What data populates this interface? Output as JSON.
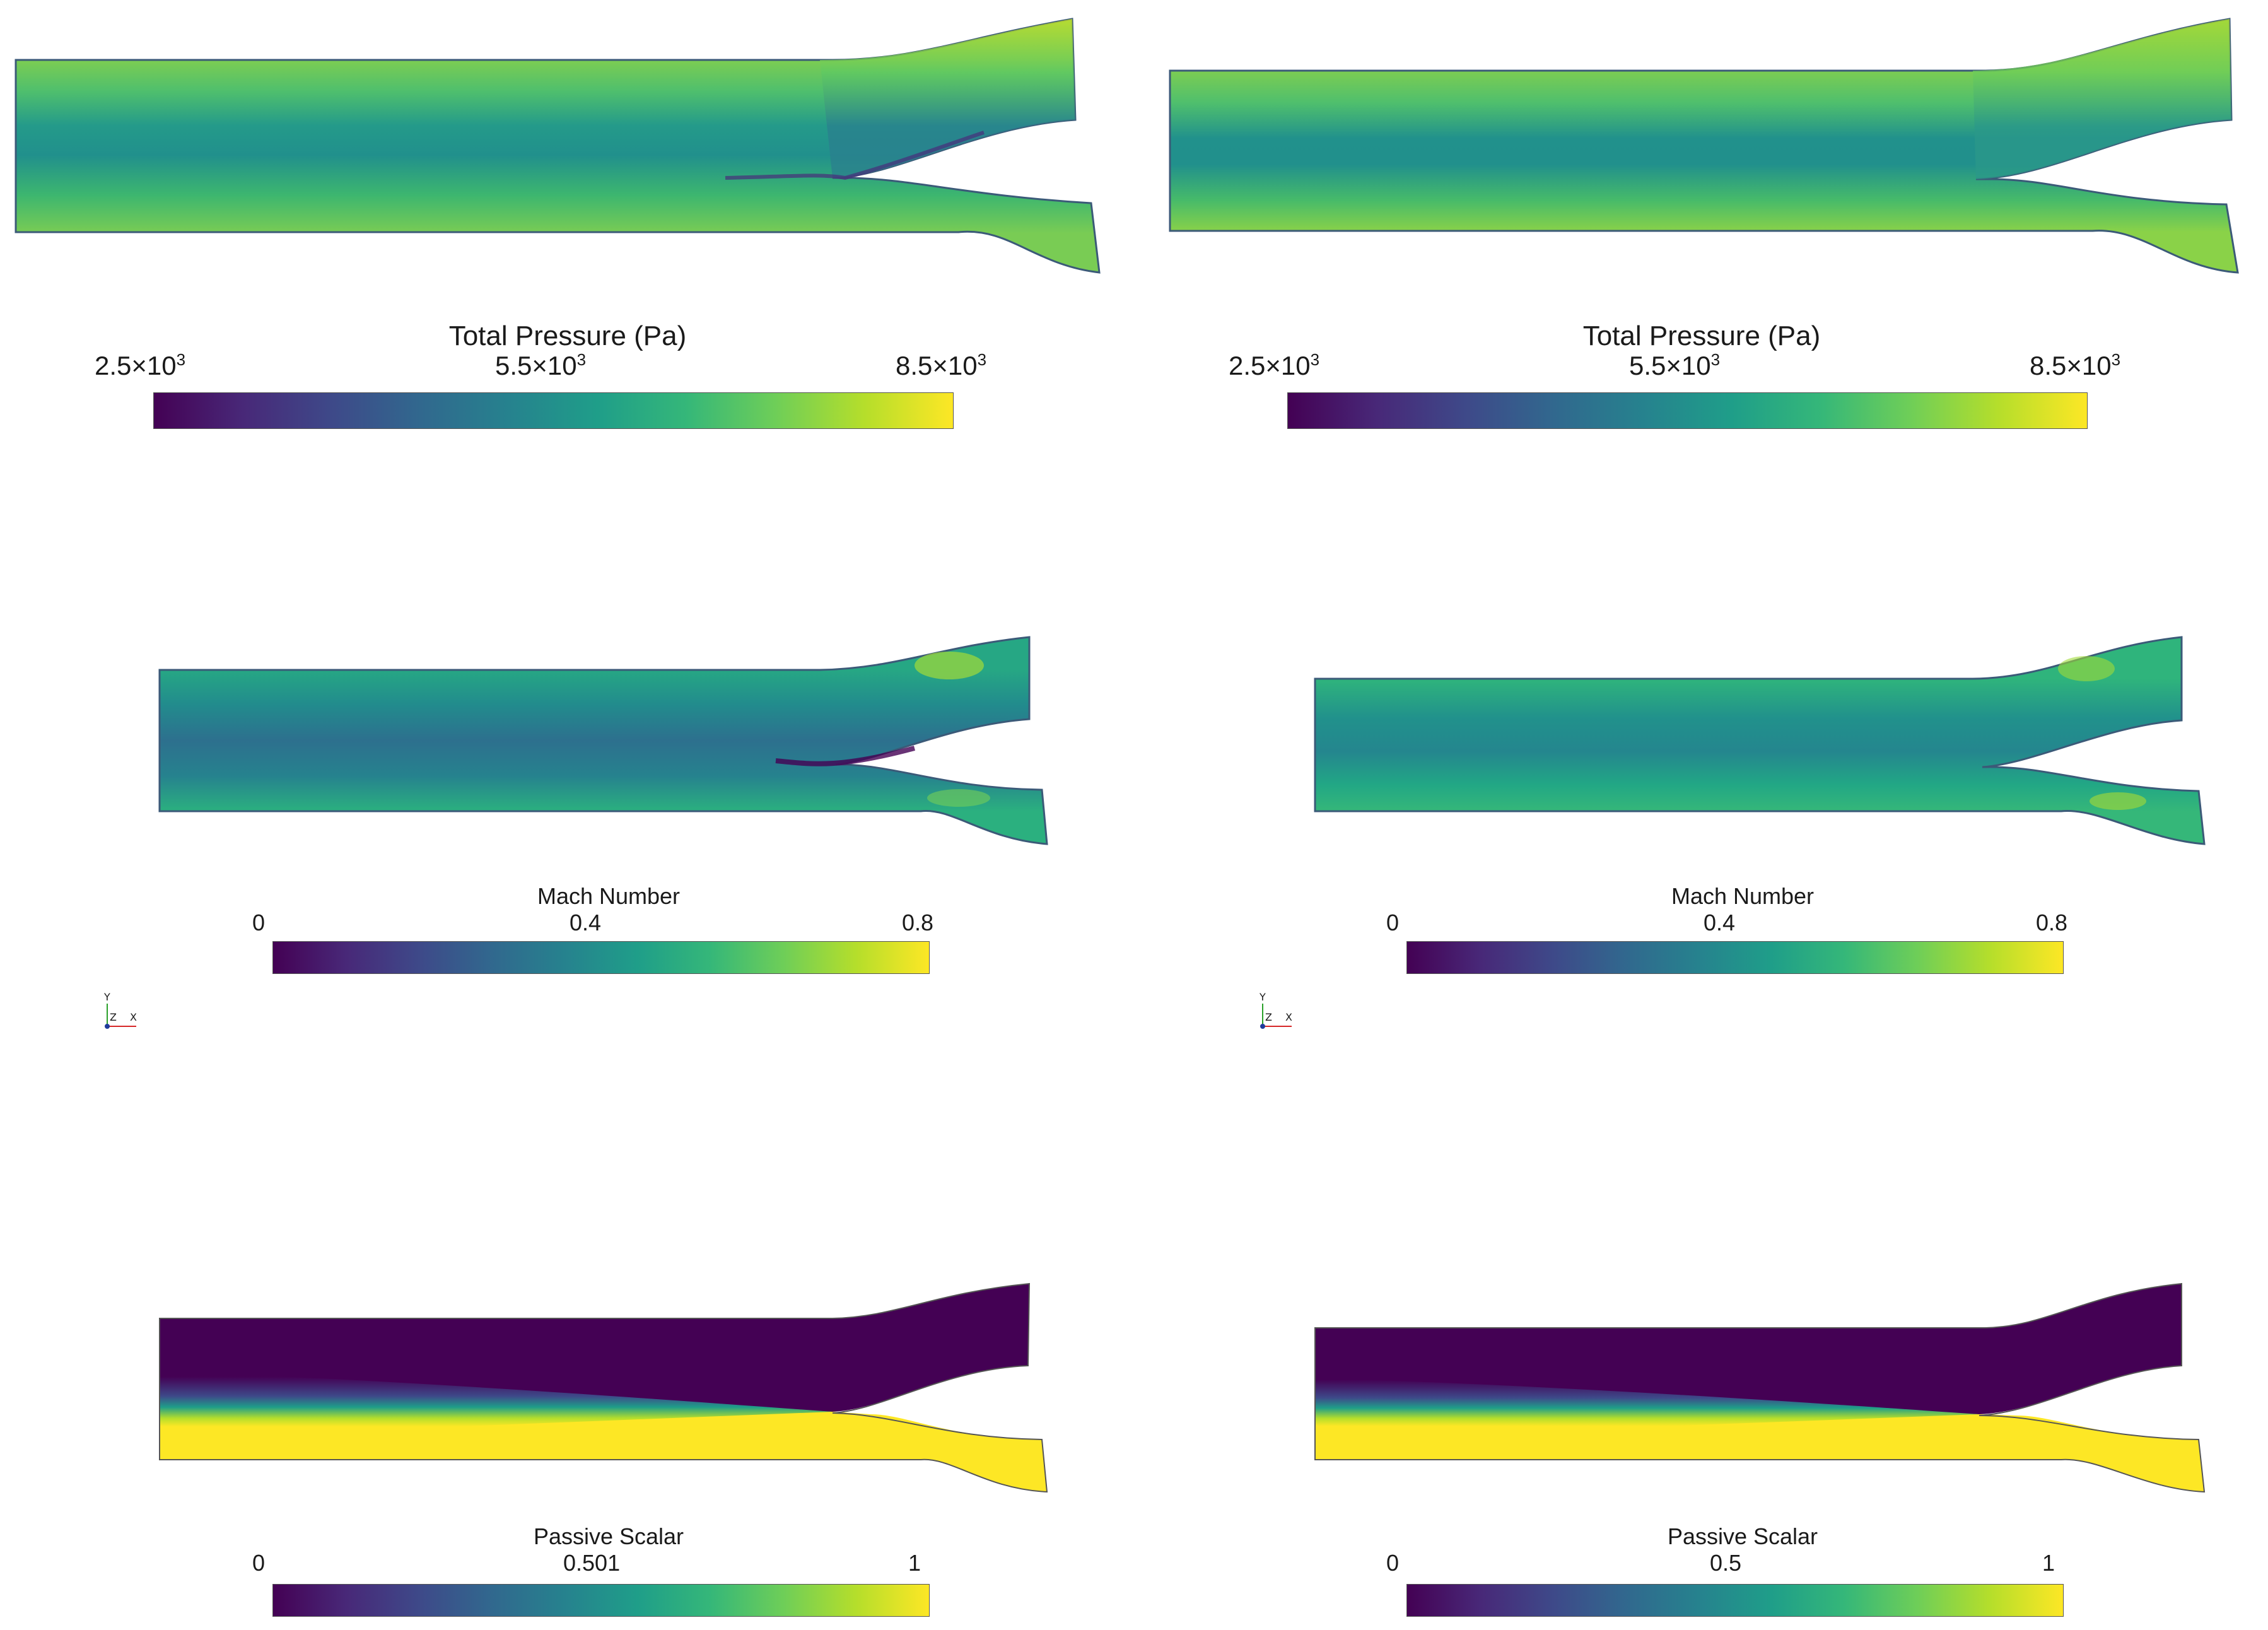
{
  "colormap": [
    "#440154",
    "#482878",
    "#3e4989",
    "#31688e",
    "#26828e",
    "#1f9e89",
    "#35b779",
    "#6ece58",
    "#b5de2b",
    "#fde725"
  ],
  "panels": [
    {
      "id": "tp-left",
      "field": "total_pressure",
      "colorbar": {
        "title": "Total Pressure (Pa)",
        "ticks": [
          {
            "mant": "2.5",
            "exp": "3"
          },
          {
            "mant": "5.5",
            "exp": "3"
          },
          {
            "mant": "8.5",
            "exp": "3"
          }
        ]
      }
    },
    {
      "id": "tp-right",
      "field": "total_pressure",
      "colorbar": {
        "title": "Total Pressure (Pa)",
        "ticks": [
          {
            "mant": "2.5",
            "exp": "3"
          },
          {
            "mant": "5.5",
            "exp": "3"
          },
          {
            "mant": "8.5",
            "exp": "3"
          }
        ]
      }
    },
    {
      "id": "mach-left",
      "field": "mach",
      "colorbar": {
        "title": "Mach Number",
        "ticks": [
          "0",
          "0.4",
          "0.8"
        ]
      }
    },
    {
      "id": "mach-right",
      "field": "mach",
      "colorbar": {
        "title": "Mach Number",
        "ticks": [
          "0",
          "0.4",
          "0.8"
        ]
      }
    },
    {
      "id": "ps-left",
      "field": "passive_scalar",
      "colorbar": {
        "title": "Passive Scalar",
        "ticks": [
          "0",
          "0.501",
          "1"
        ]
      }
    },
    {
      "id": "ps-right",
      "field": "passive_scalar",
      "colorbar": {
        "title": "Passive Scalar",
        "ticks": [
          "0",
          "0.5",
          "1"
        ]
      }
    }
  ],
  "axes_triad": {
    "labels": [
      "Y",
      "Z",
      "X"
    ]
  }
}
